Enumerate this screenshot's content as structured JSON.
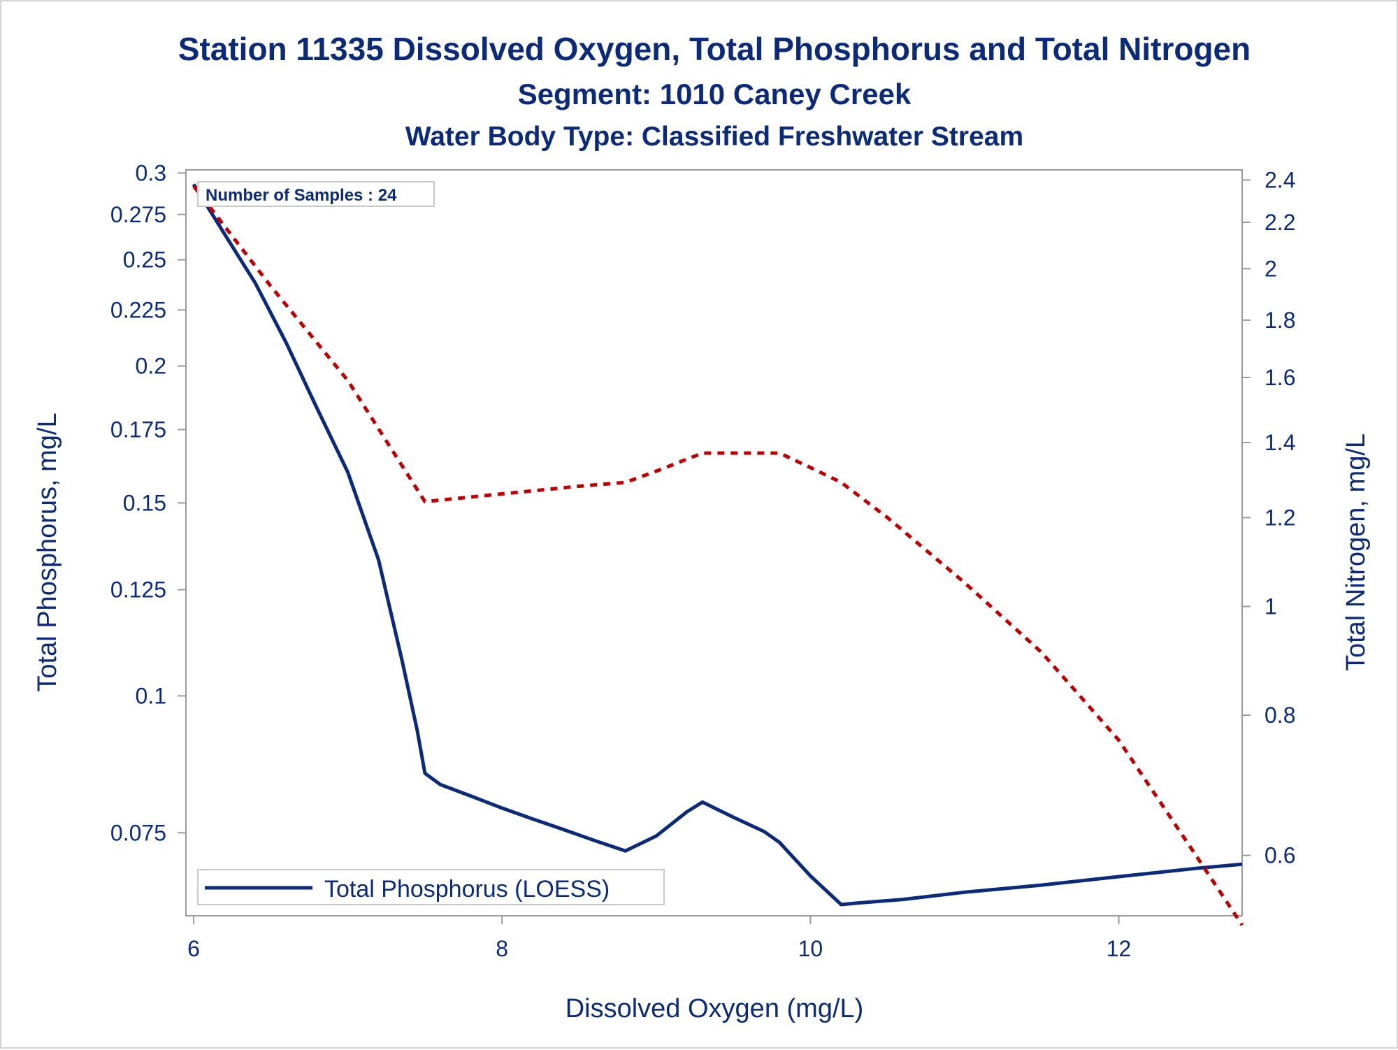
{
  "colors": {
    "text": "#0b2a7a",
    "phosphorus": "#0b2a7a",
    "nitrogen": "#c00000",
    "axis": "#9a9a9a"
  },
  "chart_data": {
    "type": "line",
    "title": "Station 11335  Dissolved Oxygen, Total Phosphorus and Total Nitrogen",
    "subtitle": "Segment: 1010  Caney Creek",
    "subtitle2": "Water Body Type: Classified Freshwater Stream",
    "xlabel": "Dissolved Oxygen (mg/L)",
    "ylabel": "Total Phosphorus, mg/L",
    "y2label": "Total Nitrogen, mg/L",
    "annotation": "Number of Samples : 24",
    "xlim": [
      5.95,
      12.8
    ],
    "ylim": [
      0.063,
      0.302
    ],
    "y_scale": "log",
    "y2lim": [
      0.53,
      2.45
    ],
    "y2_scale": "log",
    "x_ticks": [
      "6",
      "8",
      "10",
      "12"
    ],
    "y_ticks": [
      "0.3",
      "0.275",
      "0.25",
      "0.225",
      "0.2",
      "0.175",
      "0.15",
      "0.125",
      "0.1",
      "0.075"
    ],
    "y2_ticks": [
      "2.4",
      "2.2",
      "2",
      "1.8",
      "1.6",
      "1.4",
      "1.2",
      "1",
      "0.8",
      "0.6"
    ],
    "legend_position": "bottom-left inside",
    "series": [
      {
        "name": "Total Phosphorus (LOESS)",
        "axis": "left",
        "style": "solid",
        "x": [
          6.0,
          6.2,
          6.4,
          6.6,
          6.8,
          7.0,
          7.2,
          7.35,
          7.45,
          7.5,
          7.6,
          7.8,
          8.0,
          8.2,
          8.4,
          8.6,
          8.8,
          9.0,
          9.2,
          9.3,
          9.5,
          9.7,
          9.8,
          10.0,
          10.2,
          10.3,
          10.6,
          11.0,
          11.5,
          12.0,
          12.5,
          12.8
        ],
        "y": [
          0.293,
          0.264,
          0.238,
          0.21,
          0.183,
          0.16,
          0.133,
          0.108,
          0.093,
          0.085,
          0.083,
          0.081,
          0.079,
          0.0772,
          0.0755,
          0.0738,
          0.0722,
          0.0745,
          0.0784,
          0.08,
          0.0775,
          0.0752,
          0.0735,
          0.0685,
          0.0645,
          0.0647,
          0.0652,
          0.0662,
          0.0672,
          0.0684,
          0.0696,
          0.0702
        ]
      },
      {
        "name": "",
        "axis": "right",
        "style": "dashed",
        "x": [
          6.0,
          6.5,
          7.0,
          7.5,
          8.0,
          8.5,
          8.8,
          9.0,
          9.3,
          9.6,
          9.8,
          10.0,
          10.2,
          10.5,
          11.0,
          11.5,
          12.0,
          12.5,
          12.8
        ],
        "y": [
          2.37,
          1.93,
          1.59,
          1.24,
          1.26,
          1.28,
          1.29,
          1.32,
          1.37,
          1.37,
          1.37,
          1.33,
          1.29,
          1.2,
          1.05,
          0.91,
          0.76,
          0.6,
          0.52
        ]
      }
    ]
  }
}
